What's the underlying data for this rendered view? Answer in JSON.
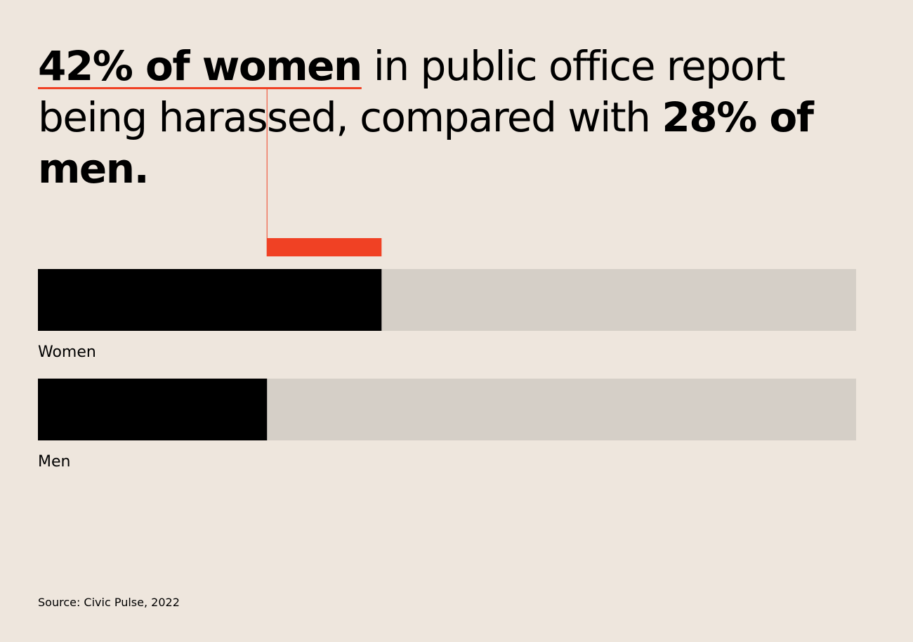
{
  "headline": {
    "part1_bold": "42% of women",
    "part2": " in public office report being harassed, compared with ",
    "part3_bold": "28% of men."
  },
  "source": "Source: Civic Pulse, 2022",
  "colors": {
    "background": "#eee6dd",
    "fill": "#000000",
    "track": "#d5cfc7",
    "accent": "#f04124"
  },
  "chart_data": {
    "type": "bar",
    "orientation": "horizontal",
    "categories": [
      "Women",
      "Men"
    ],
    "values": [
      42,
      28
    ],
    "unit": "%",
    "xlim": [
      0,
      100
    ],
    "annotation": "difference between Women and Men highlighted in red",
    "grid": false
  }
}
